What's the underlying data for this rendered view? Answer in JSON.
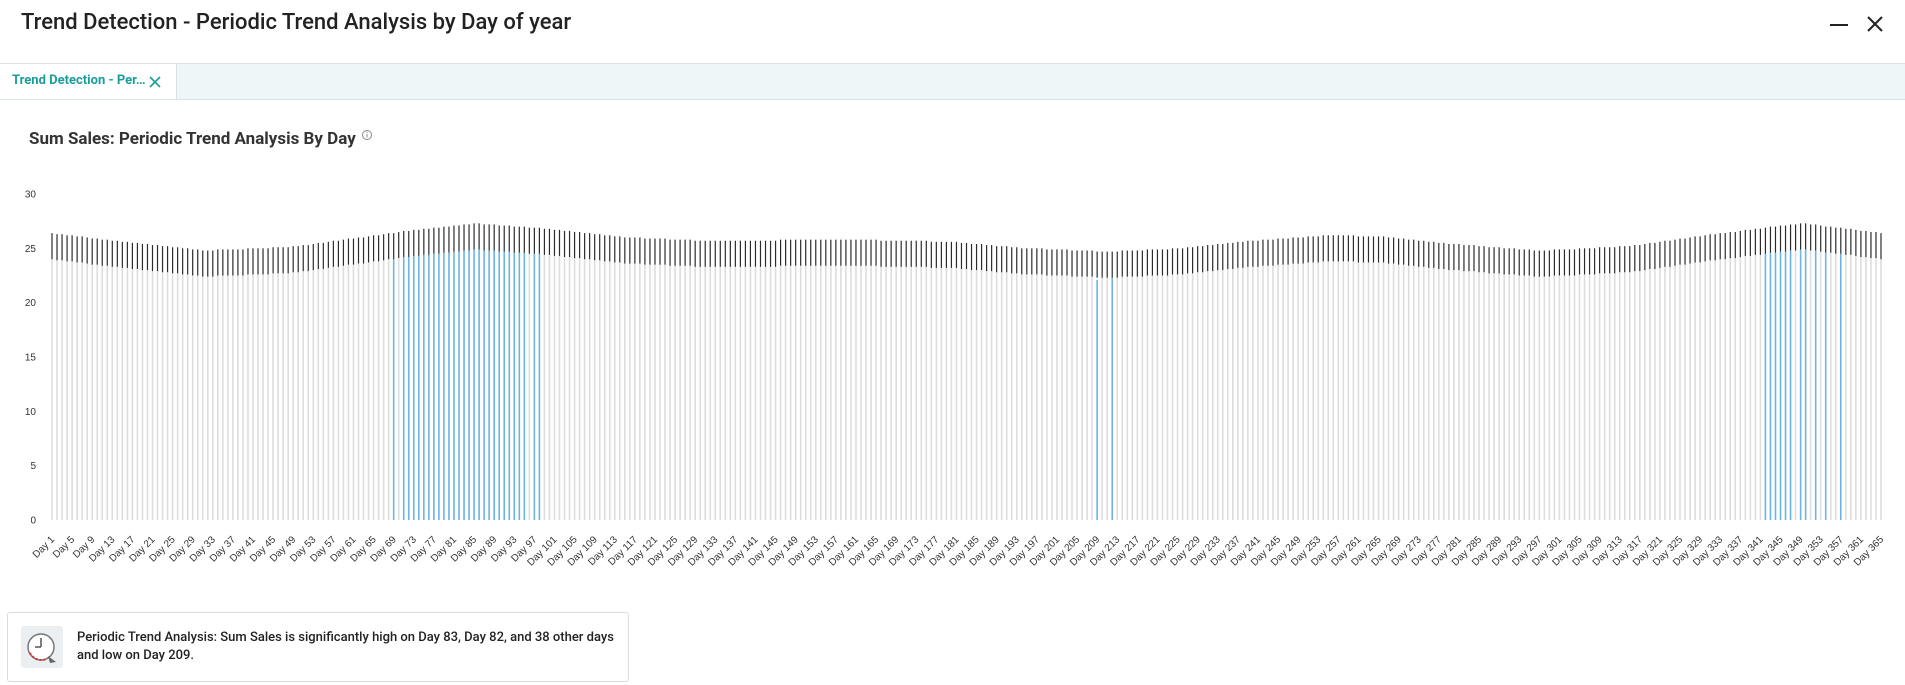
{
  "header": {
    "title": "Trend Detection - Periodic Trend Analysis by Day of year"
  },
  "tab": {
    "label": "Trend Detection - Per…"
  },
  "chart_data": {
    "type": "bar",
    "title": "Sum Sales: Periodic Trend Analysis By Day",
    "ylim": [
      0,
      30
    ],
    "yticks": [
      0,
      5,
      10,
      15,
      20,
      25,
      30
    ],
    "error": 1.2,
    "categories": [
      "Day 1",
      null,
      null,
      null,
      "Day 5",
      null,
      null,
      null,
      "Day 9",
      null,
      null,
      null,
      "Day 13",
      null,
      null,
      null,
      "Day 17",
      null,
      null,
      null,
      "Day 21",
      null,
      null,
      null,
      "Day 25",
      null,
      null,
      null,
      "Day 29",
      null,
      null,
      null,
      "Day 33",
      null,
      null,
      null,
      "Day 37",
      null,
      null,
      null,
      "Day 41",
      null,
      null,
      null,
      "Day 45",
      null,
      null,
      null,
      "Day 49",
      null,
      null,
      null,
      "Day 53",
      null,
      null,
      null,
      "Day 57",
      null,
      null,
      null,
      "Day 61",
      null,
      null,
      null,
      "Day 65",
      null,
      null,
      null,
      "Day 69",
      null,
      null,
      null,
      "Day 73",
      null,
      null,
      null,
      "Day 77",
      null,
      null,
      null,
      "Day 81",
      null,
      null,
      null,
      "Day 85",
      null,
      null,
      null,
      "Day 89",
      null,
      null,
      null,
      "Day 93",
      null,
      null,
      null,
      "Day 97",
      null,
      null,
      null,
      "Day 101",
      null,
      null,
      null,
      "Day 105",
      null,
      null,
      null,
      "Day 109",
      null,
      null,
      null,
      "Day 113",
      null,
      null,
      null,
      "Day 117",
      null,
      null,
      null,
      "Day 121",
      null,
      null,
      null,
      "Day 125",
      null,
      null,
      null,
      "Day 129",
      null,
      null,
      null,
      "Day 133",
      null,
      null,
      null,
      "Day 137",
      null,
      null,
      null,
      "Day 141",
      null,
      null,
      null,
      "Day 145",
      null,
      null,
      null,
      "Day 149",
      null,
      null,
      null,
      "Day 153",
      null,
      null,
      null,
      "Day 157",
      null,
      null,
      null,
      "Day 161",
      null,
      null,
      null,
      "Day 165",
      null,
      null,
      null,
      "Day 169",
      null,
      null,
      null,
      "Day 173",
      null,
      null,
      null,
      "Day 177",
      null,
      null,
      null,
      "Day 181",
      null,
      null,
      null,
      "Day 185",
      null,
      null,
      null,
      "Day 189",
      null,
      null,
      null,
      "Day 193",
      null,
      null,
      null,
      "Day 197",
      null,
      null,
      null,
      "Day 201",
      null,
      null,
      null,
      "Day 205",
      null,
      null,
      null,
      "Day 209",
      null,
      null,
      null,
      "Day 213",
      null,
      null,
      null,
      "Day 217",
      null,
      null,
      null,
      "Day 221",
      null,
      null,
      null,
      "Day 225",
      null,
      null,
      null,
      "Day 229",
      null,
      null,
      null,
      "Day 233",
      null,
      null,
      null,
      "Day 237",
      null,
      null,
      null,
      "Day 241",
      null,
      null,
      null,
      "Day 245",
      null,
      null,
      null,
      "Day 249",
      null,
      null,
      null,
      "Day 253",
      null,
      null,
      null,
      "Day 257",
      null,
      null,
      null,
      "Day 261",
      null,
      null,
      null,
      "Day 265",
      null,
      null,
      null,
      "Day 269",
      null,
      null,
      null,
      "Day 273",
      null,
      null,
      null,
      "Day 277",
      null,
      null,
      null,
      "Day 281",
      null,
      null,
      null,
      "Day 285",
      null,
      null,
      null,
      "Day 289",
      null,
      null,
      null,
      "Day 293",
      null,
      null,
      null,
      "Day 297",
      null,
      null,
      null,
      "Day 301",
      null,
      null,
      null,
      "Day 305",
      null,
      null,
      null,
      "Day 309",
      null,
      null,
      null,
      "Day 313",
      null,
      null,
      null,
      "Day 317",
      null,
      null,
      null,
      "Day 321",
      null,
      null,
      null,
      "Day 325",
      null,
      null,
      null,
      "Day 329",
      null,
      null,
      null,
      "Day 333",
      null,
      null,
      null,
      "Day 337",
      null,
      null,
      null,
      "Day 341",
      null,
      null,
      null,
      "Day 345",
      null,
      null,
      null,
      "Day 349",
      null,
      null,
      null,
      "Day 353",
      null,
      null,
      null,
      "Day 357",
      null,
      null,
      null,
      "Day 361",
      null,
      null,
      null,
      "Day 365"
    ],
    "values": [
      24.0,
      23.9,
      23.9,
      23.8,
      23.8,
      23.7,
      23.7,
      23.6,
      23.5,
      23.5,
      23.4,
      23.4,
      23.3,
      23.3,
      23.2,
      23.2,
      23.1,
      23.1,
      23.0,
      23.0,
      22.9,
      22.9,
      22.8,
      22.8,
      22.7,
      22.7,
      22.6,
      22.6,
      22.5,
      22.5,
      22.4,
      22.4,
      22.4,
      22.5,
      22.5,
      22.5,
      22.5,
      22.5,
      22.5,
      22.6,
      22.6,
      22.6,
      22.6,
      22.6,
      22.7,
      22.7,
      22.7,
      22.7,
      22.8,
      22.8,
      22.9,
      22.9,
      23.0,
      23.1,
      23.1,
      23.2,
      23.3,
      23.3,
      23.4,
      23.5,
      23.5,
      23.6,
      23.6,
      23.7,
      23.8,
      23.8,
      23.9,
      24.0,
      24.0,
      24.1,
      24.2,
      24.2,
      24.3,
      24.3,
      24.4,
      24.4,
      24.5,
      24.5,
      24.6,
      24.6,
      24.7,
      24.7,
      24.8,
      24.8,
      24.9,
      24.9,
      24.8,
      24.8,
      24.8,
      24.7,
      24.7,
      24.7,
      24.6,
      24.6,
      24.6,
      24.5,
      24.5,
      24.5,
      24.4,
      24.4,
      24.3,
      24.3,
      24.2,
      24.2,
      24.1,
      24.1,
      24.0,
      24.0,
      23.9,
      23.9,
      23.8,
      23.8,
      23.7,
      23.7,
      23.6,
      23.6,
      23.6,
      23.6,
      23.5,
      23.5,
      23.5,
      23.5,
      23.5,
      23.4,
      23.4,
      23.4,
      23.4,
      23.4,
      23.3,
      23.3,
      23.3,
      23.3,
      23.3,
      23.3,
      23.3,
      23.3,
      23.3,
      23.3,
      23.3,
      23.3,
      23.3,
      23.3,
      23.3,
      23.3,
      23.3,
      23.4,
      23.4,
      23.4,
      23.4,
      23.4,
      23.4,
      23.4,
      23.4,
      23.4,
      23.4,
      23.4,
      23.4,
      23.4,
      23.4,
      23.4,
      23.4,
      23.4,
      23.4,
      23.4,
      23.4,
      23.3,
      23.3,
      23.3,
      23.3,
      23.3,
      23.3,
      23.3,
      23.3,
      23.3,
      23.3,
      23.2,
      23.2,
      23.2,
      23.2,
      23.2,
      23.2,
      23.1,
      23.1,
      23.0,
      23.0,
      23.0,
      22.9,
      22.9,
      22.8,
      22.8,
      22.8,
      22.7,
      22.7,
      22.6,
      22.6,
      22.6,
      22.6,
      22.6,
      22.5,
      22.5,
      22.5,
      22.5,
      22.5,
      22.4,
      22.4,
      22.4,
      22.4,
      22.4,
      22.1,
      22.3,
      22.3,
      22.3,
      22.3,
      22.4,
      22.4,
      22.4,
      22.4,
      22.4,
      22.5,
      22.5,
      22.5,
      22.5,
      22.5,
      22.6,
      22.6,
      22.6,
      22.7,
      22.7,
      22.8,
      22.8,
      22.9,
      22.9,
      23.0,
      23.0,
      23.1,
      23.1,
      23.2,
      23.2,
      23.3,
      23.3,
      23.3,
      23.4,
      23.4,
      23.4,
      23.5,
      23.5,
      23.5,
      23.6,
      23.6,
      23.6,
      23.7,
      23.7,
      23.7,
      23.8,
      23.8,
      23.8,
      23.8,
      23.8,
      23.8,
      23.8,
      23.7,
      23.7,
      23.7,
      23.7,
      23.7,
      23.7,
      23.6,
      23.6,
      23.5,
      23.5,
      23.4,
      23.4,
      23.3,
      23.3,
      23.2,
      23.2,
      23.1,
      23.1,
      23.0,
      23.0,
      23.0,
      22.9,
      22.9,
      22.9,
      22.8,
      22.8,
      22.7,
      22.7,
      22.7,
      22.6,
      22.6,
      22.6,
      22.5,
      22.5,
      22.5,
      22.4,
      22.4,
      22.4,
      22.4,
      22.5,
      22.5,
      22.5,
      22.5,
      22.5,
      22.6,
      22.6,
      22.6,
      22.6,
      22.7,
      22.7,
      22.7,
      22.7,
      22.8,
      22.8,
      22.8,
      22.9,
      22.9,
      23.0,
      23.1,
      23.1,
      23.2,
      23.3,
      23.3,
      23.4,
      23.5,
      23.5,
      23.6,
      23.7,
      23.7,
      23.8,
      23.9,
      23.9,
      24.0,
      24.0,
      24.1,
      24.1,
      24.2,
      24.3,
      24.3,
      24.4,
      24.4,
      24.5,
      24.6,
      24.6,
      24.7,
      24.7,
      24.8,
      24.8,
      24.9,
      24.9,
      24.8,
      24.8,
      24.7,
      24.6,
      24.6,
      24.5,
      24.5,
      24.4,
      24.4,
      24.3,
      24.2,
      24.2,
      24.1,
      24.1,
      24.0
    ],
    "expected": [
      25.2,
      25.1,
      25.1,
      25.0,
      25.0,
      24.9,
      24.9,
      24.8,
      24.7,
      24.7,
      24.6,
      24.6,
      24.5,
      24.5,
      24.4,
      24.4,
      24.3,
      24.3,
      24.2,
      24.2,
      24.1,
      24.1,
      24.0,
      24.0,
      23.9,
      23.9,
      23.8,
      23.8,
      23.7,
      23.7,
      23.6,
      23.6,
      23.6,
      23.7,
      23.7,
      23.7,
      23.7,
      23.7,
      23.7,
      23.8,
      23.8,
      23.8,
      23.8,
      23.8,
      23.9,
      23.9,
      23.9,
      23.9,
      24.0,
      24.0,
      24.1,
      24.1,
      24.2,
      24.3,
      24.3,
      24.4,
      24.5,
      24.5,
      24.6,
      24.7,
      24.7,
      24.8,
      24.8,
      24.9,
      25.0,
      25.0,
      25.1,
      25.2,
      25.2,
      25.3,
      25.4,
      25.4,
      25.5,
      25.5,
      25.6,
      25.6,
      25.7,
      25.7,
      25.8,
      25.8,
      25.9,
      25.9,
      26.0,
      26.0,
      26.1,
      26.1,
      26.0,
      26.0,
      26.0,
      25.9,
      25.9,
      25.9,
      25.8,
      25.8,
      25.8,
      25.7,
      25.7,
      25.7,
      25.6,
      25.6,
      25.5,
      25.5,
      25.4,
      25.4,
      25.3,
      25.3,
      25.2,
      25.2,
      25.1,
      25.1,
      25.0,
      25.0,
      24.9,
      24.9,
      24.8,
      24.8,
      24.8,
      24.8,
      24.7,
      24.7,
      24.7,
      24.7,
      24.7,
      24.6,
      24.6,
      24.6,
      24.6,
      24.6,
      24.5,
      24.5,
      24.5,
      24.5,
      24.5,
      24.5,
      24.5,
      24.5,
      24.5,
      24.5,
      24.5,
      24.5,
      24.5,
      24.5,
      24.5,
      24.5,
      24.5,
      24.6,
      24.6,
      24.6,
      24.6,
      24.6,
      24.6,
      24.6,
      24.6,
      24.6,
      24.6,
      24.6,
      24.6,
      24.6,
      24.6,
      24.6,
      24.6,
      24.6,
      24.6,
      24.6,
      24.6,
      24.5,
      24.5,
      24.5,
      24.5,
      24.5,
      24.5,
      24.5,
      24.5,
      24.5,
      24.5,
      24.4,
      24.4,
      24.4,
      24.4,
      24.4,
      24.4,
      24.3,
      24.3,
      24.2,
      24.2,
      24.2,
      24.1,
      24.1,
      24.0,
      24.0,
      24.0,
      23.9,
      23.9,
      23.8,
      23.8,
      23.8,
      23.8,
      23.8,
      23.7,
      23.7,
      23.7,
      23.7,
      23.7,
      23.6,
      23.6,
      23.6,
      23.6,
      23.6,
      23.5,
      23.5,
      23.5,
      23.5,
      23.5,
      23.6,
      23.6,
      23.6,
      23.6,
      23.6,
      23.7,
      23.7,
      23.7,
      23.7,
      23.7,
      23.8,
      23.8,
      23.8,
      23.9,
      23.9,
      24.0,
      24.0,
      24.1,
      24.1,
      24.2,
      24.2,
      24.3,
      24.3,
      24.4,
      24.4,
      24.5,
      24.5,
      24.5,
      24.6,
      24.6,
      24.6,
      24.7,
      24.7,
      24.7,
      24.8,
      24.8,
      24.8,
      24.9,
      24.9,
      24.9,
      25.0,
      25.0,
      25.0,
      25.0,
      25.0,
      25.0,
      25.0,
      24.9,
      24.9,
      24.9,
      24.9,
      24.9,
      24.9,
      24.8,
      24.8,
      24.7,
      24.7,
      24.6,
      24.6,
      24.5,
      24.5,
      24.4,
      24.4,
      24.3,
      24.3,
      24.2,
      24.2,
      24.2,
      24.1,
      24.1,
      24.1,
      24.0,
      24.0,
      23.9,
      23.9,
      23.9,
      23.8,
      23.8,
      23.8,
      23.7,
      23.7,
      23.7,
      23.6,
      23.6,
      23.6,
      23.6,
      23.7,
      23.7,
      23.7,
      23.7,
      23.7,
      23.8,
      23.8,
      23.8,
      23.8,
      23.9,
      23.9,
      23.9,
      23.9,
      24.0,
      24.0,
      24.0,
      24.1,
      24.1,
      24.2,
      24.3,
      24.3,
      24.4,
      24.5,
      24.5,
      24.6,
      24.7,
      24.7,
      24.8,
      24.9,
      24.9,
      25.0,
      25.1,
      25.1,
      25.2,
      25.2,
      25.3,
      25.3,
      25.4,
      25.5,
      25.5,
      25.6,
      25.6,
      25.7,
      25.8,
      25.8,
      25.9,
      25.9,
      26.0,
      26.0,
      26.1,
      26.1,
      26.0,
      26.0,
      25.9,
      25.8,
      25.8,
      25.7,
      25.7,
      25.6,
      25.6,
      25.5,
      25.4,
      25.4,
      25.3,
      25.3,
      25.2
    ],
    "error_color": "#2b2b2b",
    "colors": [
      "#ddd",
      "#ddd",
      "#ddd",
      "#ddd",
      "#ddd",
      "#ddd",
      "#ddd",
      "#ddd",
      "#ddd",
      "#ddd",
      "#ddd",
      "#ddd",
      "#ddd",
      "#ddd",
      "#ddd",
      "#ddd",
      "#ddd",
      "#ddd",
      "#ddd",
      "#ddd",
      "#ddd",
      "#ddd",
      "#ddd",
      "#ddd",
      "#ddd",
      "#ddd",
      "#ddd",
      "#ddd",
      "#ddd",
      "#ddd",
      "#ddd",
      "#ddd",
      "#ddd",
      "#ddd",
      "#ddd",
      "#ddd",
      "#ddd",
      "#ddd",
      "#ddd",
      "#ddd",
      "#ddd",
      "#ddd",
      "#ddd",
      "#ddd",
      "#ddd",
      "#ddd",
      "#ddd",
      "#ddd",
      "#ddd",
      "#ddd",
      "#ddd",
      "#ddd",
      "#ddd",
      "#ddd",
      "#ddd",
      "#ddd",
      "#ddd",
      "#ddd",
      "#ddd",
      "#ddd",
      "#ddd",
      "#ddd",
      "#ddd",
      "#ddd",
      "#ddd",
      "#ddd",
      "#ddd",
      "#ddd",
      "#6cb4e4",
      "#ddd",
      "#6cb4e4",
      "#6cb4e4",
      "#6cb4e4",
      "#6cb4e4",
      "#6cb4e4",
      "#6cb4e4",
      "#6cb4e4",
      "#6cb4e4",
      "#6cb4e4",
      "#6cb4e4",
      "#6cb4e4",
      "#6cb4e4",
      "#6cb4e4",
      "#6cb4e4",
      "#6cb4e4",
      "#6cb4e4",
      "#6cb4e4",
      "#6cb4e4",
      "#6cb4e4",
      "#6cb4e4",
      "#6cb4e4",
      "#6cb4e4",
      "#6cb4e4",
      "#6cb4e4",
      "#6cb4e4",
      "#ddd",
      "#6cb4e4",
      "#6cb4e4",
      "#ddd",
      "#ddd",
      "#ddd",
      "#ddd",
      "#ddd",
      "#ddd",
      "#ddd",
      "#ddd",
      "#ddd",
      "#ddd",
      "#ddd",
      "#ddd",
      "#ddd",
      "#ddd",
      "#ddd",
      "#ddd",
      "#ddd",
      "#ddd",
      "#ddd",
      "#ddd",
      "#ddd",
      "#ddd",
      "#ddd",
      "#ddd",
      "#ddd",
      "#ddd",
      "#ddd",
      "#ddd",
      "#ddd",
      "#ddd",
      "#ddd",
      "#ddd",
      "#ddd",
      "#ddd",
      "#ddd",
      "#ddd",
      "#ddd",
      "#ddd",
      "#ddd",
      "#ddd",
      "#ddd",
      "#ddd",
      "#ddd",
      "#ddd",
      "#ddd",
      "#ddd",
      "#ddd",
      "#ddd",
      "#ddd",
      "#ddd",
      "#ddd",
      "#ddd",
      "#ddd",
      "#ddd",
      "#ddd",
      "#ddd",
      "#ddd",
      "#ddd",
      "#ddd",
      "#ddd",
      "#ddd",
      "#ddd",
      "#ddd",
      "#ddd",
      "#ddd",
      "#ddd",
      "#ddd",
      "#ddd",
      "#ddd",
      "#ddd",
      "#ddd",
      "#ddd",
      "#ddd",
      "#ddd",
      "#ddd",
      "#ddd",
      "#ddd",
      "#ddd",
      "#ddd",
      "#ddd",
      "#ddd",
      "#ddd",
      "#ddd",
      "#ddd",
      "#ddd",
      "#ddd",
      "#ddd",
      "#ddd",
      "#ddd",
      "#ddd",
      "#ddd",
      "#ddd",
      "#ddd",
      "#ddd",
      "#ddd",
      "#ddd",
      "#ddd",
      "#ddd",
      "#ddd",
      "#ddd",
      "#ddd",
      "#ddd",
      "#ddd",
      "#ddd",
      "#ddd",
      "#ddd",
      "#ddd",
      "#ddd",
      "#ddd",
      "#ddd",
      "#6cb4e4",
      "#ddd",
      "#ddd",
      "#6cb4e4",
      "#ddd",
      "#ddd",
      "#ddd",
      "#ddd",
      "#ddd",
      "#ddd",
      "#ddd",
      "#ddd",
      "#ddd",
      "#ddd",
      "#ddd",
      "#ddd",
      "#ddd",
      "#ddd",
      "#ddd",
      "#ddd",
      "#ddd",
      "#ddd",
      "#ddd",
      "#ddd",
      "#ddd",
      "#ddd",
      "#ddd",
      "#ddd",
      "#ddd",
      "#ddd",
      "#ddd",
      "#ddd",
      "#ddd",
      "#ddd",
      "#ddd",
      "#ddd",
      "#ddd",
      "#ddd",
      "#ddd",
      "#ddd",
      "#ddd",
      "#ddd",
      "#ddd",
      "#ddd",
      "#ddd",
      "#ddd",
      "#ddd",
      "#ddd",
      "#ddd",
      "#ddd",
      "#ddd",
      "#ddd",
      "#ddd",
      "#ddd",
      "#ddd",
      "#ddd",
      "#ddd",
      "#ddd",
      "#ddd",
      "#ddd",
      "#ddd",
      "#ddd",
      "#ddd",
      "#ddd",
      "#ddd",
      "#ddd",
      "#ddd",
      "#ddd",
      "#ddd",
      "#ddd",
      "#ddd",
      "#ddd",
      "#ddd",
      "#ddd",
      "#ddd",
      "#ddd",
      "#ddd",
      "#ddd",
      "#ddd",
      "#ddd",
      "#ddd",
      "#ddd",
      "#ddd",
      "#ddd",
      "#ddd",
      "#ddd",
      "#ddd",
      "#ddd",
      "#ddd",
      "#ddd",
      "#ddd",
      "#ddd",
      "#ddd",
      "#ddd",
      "#ddd",
      "#ddd",
      "#ddd",
      "#ddd",
      "#ddd",
      "#ddd",
      "#ddd",
      "#ddd",
      "#ddd",
      "#ddd",
      "#ddd",
      "#ddd",
      "#ddd",
      "#ddd",
      "#ddd",
      "#ddd",
      "#ddd",
      "#ddd",
      "#ddd",
      "#ddd",
      "#ddd",
      "#ddd",
      "#ddd",
      "#ddd",
      "#ddd",
      "#ddd",
      "#ddd",
      "#ddd",
      "#ddd",
      "#ddd",
      "#ddd",
      "#ddd",
      "#ddd",
      "#ddd",
      "#ddd",
      "#ddd",
      "#ddd",
      "#ddd",
      "#ddd",
      "#6cb4e4",
      "#6cb4e4",
      "#6cb4e4",
      "#6cb4e4",
      "#6cb4e4",
      "#6cb4e4",
      "#ddd",
      "#6cb4e4",
      "#6cb4e4",
      "#ddd",
      "#6cb4e4",
      "#ddd",
      "#6cb4e4",
      "#ddd",
      "#ddd",
      "#6cb4e4",
      "#ddd",
      "#ddd",
      "#ddd",
      "#ddd",
      "#ddd",
      "#ddd",
      "#ddd",
      "#ddd"
    ]
  },
  "insight": {
    "text": "Periodic Trend Analysis: Sum Sales is significantly high on Day 83, Day 82, and 38 other days and low on Day 209."
  }
}
